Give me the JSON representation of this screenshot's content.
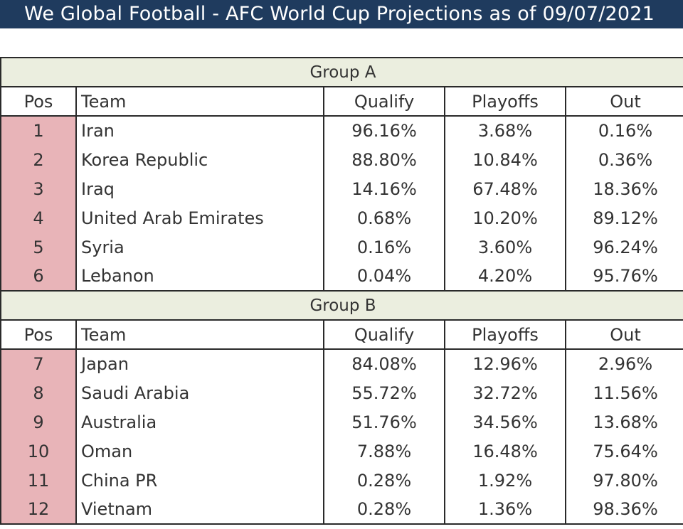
{
  "title": "We Global Football - AFC World Cup Projections as of 09/07/2021",
  "headers": {
    "pos": "Pos",
    "team": "Team",
    "qualify": "Qualify",
    "playoffs": "Playoffs",
    "out": "Out"
  },
  "groups": [
    {
      "name": "Group A",
      "rows": [
        {
          "pos": "1",
          "team": "Iran",
          "qualify": "96.16%",
          "playoffs": "3.68%",
          "out": "0.16%"
        },
        {
          "pos": "2",
          "team": "Korea Republic",
          "qualify": "88.80%",
          "playoffs": "10.84%",
          "out": "0.36%"
        },
        {
          "pos": "3",
          "team": "Iraq",
          "qualify": "14.16%",
          "playoffs": "67.48%",
          "out": "18.36%"
        },
        {
          "pos": "4",
          "team": "United Arab Emirates",
          "qualify": "0.68%",
          "playoffs": "10.20%",
          "out": "89.12%"
        },
        {
          "pos": "5",
          "team": "Syria",
          "qualify": "0.16%",
          "playoffs": "3.60%",
          "out": "96.24%"
        },
        {
          "pos": "6",
          "team": "Lebanon",
          "qualify": "0.04%",
          "playoffs": "4.20%",
          "out": "95.76%"
        }
      ]
    },
    {
      "name": "Group B",
      "rows": [
        {
          "pos": "7",
          "team": "Japan",
          "qualify": "84.08%",
          "playoffs": "12.96%",
          "out": "2.96%"
        },
        {
          "pos": "8",
          "team": "Saudi Arabia",
          "qualify": "55.72%",
          "playoffs": "32.72%",
          "out": "11.56%"
        },
        {
          "pos": "9",
          "team": "Australia",
          "qualify": "51.76%",
          "playoffs": "34.56%",
          "out": "13.68%"
        },
        {
          "pos": "10",
          "team": "Oman",
          "qualify": "7.88%",
          "playoffs": "16.48%",
          "out": "75.64%"
        },
        {
          "pos": "11",
          "team": "China PR",
          "qualify": "0.28%",
          "playoffs": "1.92%",
          "out": "97.80%"
        },
        {
          "pos": "12",
          "team": "Vietnam",
          "qualify": "0.28%",
          "playoffs": "1.36%",
          "out": "98.36%"
        }
      ]
    }
  ],
  "colors": {
    "title_bg": "#1f3b5e",
    "group_bg": "#ebeedf",
    "pos_bg": "#e8b4b8"
  }
}
